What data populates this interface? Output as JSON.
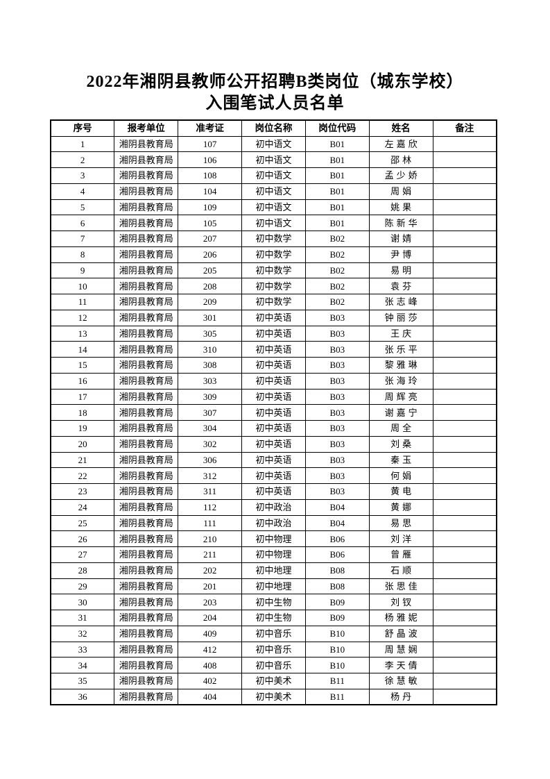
{
  "title": {
    "line1": "2022年湘阴县教师公开招聘B类岗位（城东学校）",
    "line2": "入围笔试人员名单"
  },
  "table": {
    "col_keys": [
      "index",
      "unit",
      "ticket",
      "position",
      "code",
      "name",
      "remark"
    ],
    "headers": [
      "序号",
      "报考单位",
      "准考证",
      "岗位名称",
      "岗位代码",
      "姓名",
      "备注"
    ],
    "rows": [
      [
        "1",
        "湘阴县教育局",
        "107",
        "初中语文",
        "B01",
        "左嘉欣",
        ""
      ],
      [
        "2",
        "湘阴县教育局",
        "106",
        "初中语文",
        "B01",
        "邵林",
        ""
      ],
      [
        "3",
        "湘阴县教育局",
        "108",
        "初中语文",
        "B01",
        "孟少娇",
        ""
      ],
      [
        "4",
        "湘阴县教育局",
        "104",
        "初中语文",
        "B01",
        "周娟",
        ""
      ],
      [
        "5",
        "湘阴县教育局",
        "109",
        "初中语文",
        "B01",
        "姚果",
        ""
      ],
      [
        "6",
        "湘阴县教育局",
        "105",
        "初中语文",
        "B01",
        "陈新华",
        ""
      ],
      [
        "7",
        "湘阴县教育局",
        "207",
        "初中数学",
        "B02",
        "谢婧",
        ""
      ],
      [
        "8",
        "湘阴县教育局",
        "206",
        "初中数学",
        "B02",
        "尹博",
        ""
      ],
      [
        "9",
        "湘阴县教育局",
        "205",
        "初中数学",
        "B02",
        "易明",
        ""
      ],
      [
        "10",
        "湘阴县教育局",
        "208",
        "初中数学",
        "B02",
        "袁芬",
        ""
      ],
      [
        "11",
        "湘阴县教育局",
        "209",
        "初中数学",
        "B02",
        "张志峰",
        ""
      ],
      [
        "12",
        "湘阴县教育局",
        "301",
        "初中英语",
        "B03",
        "钟丽莎",
        ""
      ],
      [
        "13",
        "湘阴县教育局",
        "305",
        "初中英语",
        "B03",
        "王庆",
        ""
      ],
      [
        "14",
        "湘阴县教育局",
        "310",
        "初中英语",
        "B03",
        "张乐平",
        ""
      ],
      [
        "15",
        "湘阴县教育局",
        "308",
        "初中英语",
        "B03",
        "黎雅琳",
        ""
      ],
      [
        "16",
        "湘阴县教育局",
        "303",
        "初中英语",
        "B03",
        "张海玲",
        ""
      ],
      [
        "17",
        "湘阴县教育局",
        "309",
        "初中英语",
        "B03",
        "周辉亮",
        ""
      ],
      [
        "18",
        "湘阴县教育局",
        "307",
        "初中英语",
        "B03",
        "谢嘉宁",
        ""
      ],
      [
        "19",
        "湘阴县教育局",
        "304",
        "初中英语",
        "B03",
        "周全",
        ""
      ],
      [
        "20",
        "湘阴县教育局",
        "302",
        "初中英语",
        "B03",
        "刘桑",
        ""
      ],
      [
        "21",
        "湘阴县教育局",
        "306",
        "初中英语",
        "B03",
        "秦玉",
        ""
      ],
      [
        "22",
        "湘阴县教育局",
        "312",
        "初中英语",
        "B03",
        "何娟",
        ""
      ],
      [
        "23",
        "湘阴县教育局",
        "311",
        "初中英语",
        "B03",
        "黄电",
        ""
      ],
      [
        "24",
        "湘阴县教育局",
        "112",
        "初中政治",
        "B04",
        "黄娜",
        ""
      ],
      [
        "25",
        "湘阴县教育局",
        "111",
        "初中政治",
        "B04",
        "易思",
        ""
      ],
      [
        "26",
        "湘阴县教育局",
        "210",
        "初中物理",
        "B06",
        "刘洋",
        ""
      ],
      [
        "27",
        "湘阴县教育局",
        "211",
        "初中物理",
        "B06",
        "曾雁",
        ""
      ],
      [
        "28",
        "湘阴县教育局",
        "202",
        "初中地理",
        "B08",
        "石顺",
        ""
      ],
      [
        "29",
        "湘阴县教育局",
        "201",
        "初中地理",
        "B08",
        "张思佳",
        ""
      ],
      [
        "30",
        "湘阴县教育局",
        "203",
        "初中生物",
        "B09",
        "刘钗",
        ""
      ],
      [
        "31",
        "湘阴县教育局",
        "204",
        "初中生物",
        "B09",
        "杨雅妮",
        ""
      ],
      [
        "32",
        "湘阴县教育局",
        "409",
        "初中音乐",
        "B10",
        "舒晶波",
        ""
      ],
      [
        "33",
        "湘阴县教育局",
        "412",
        "初中音乐",
        "B10",
        "周慧娴",
        ""
      ],
      [
        "34",
        "湘阴县教育局",
        "408",
        "初中音乐",
        "B10",
        "李天倩",
        ""
      ],
      [
        "35",
        "湘阴县教育局",
        "402",
        "初中美术",
        "B11",
        "徐慧敏",
        ""
      ],
      [
        "36",
        "湘阴县教育局",
        "404",
        "初中美术",
        "B11",
        "杨丹",
        ""
      ]
    ]
  }
}
